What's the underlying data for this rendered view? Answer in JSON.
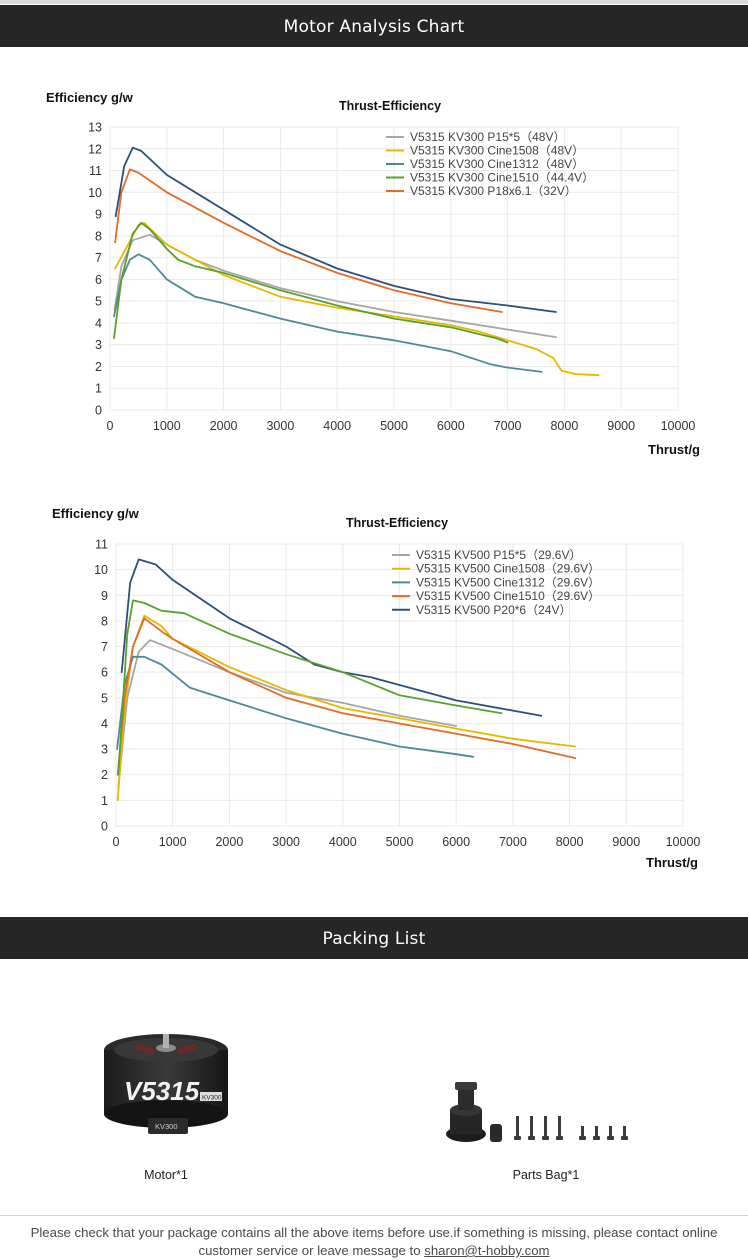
{
  "header": {
    "title": "Motor Analysis Chart"
  },
  "packing": {
    "title": "Packing List",
    "items": [
      {
        "label": "Motor*1",
        "motor_text": "V5315",
        "motor_badge": "KV300"
      },
      {
        "label": "Parts Bag*1"
      }
    ]
  },
  "footer": {
    "text_before": "Please check that your package contains all the above items before use.if something is missing, please contact online customer service or leave message to ",
    "email": "sharon@t-hobby.com"
  },
  "chart_data": [
    {
      "type": "line",
      "title": "Thrust-Efficiency",
      "ylabel": "Efficiency g/w",
      "xlabel": "Thrust/g",
      "xlim": [
        0,
        10000
      ],
      "ylim": [
        0,
        13
      ],
      "xticks": [
        0,
        1000,
        2000,
        3000,
        4000,
        5000,
        6000,
        7000,
        8000,
        9000,
        10000
      ],
      "yticks": [
        0,
        1,
        2,
        3,
        4,
        5,
        6,
        7,
        8,
        9,
        10,
        11,
        12,
        13
      ],
      "grid": true,
      "legend_position": "top-right",
      "series": [
        {
          "name": "V5315 KV300 P15*5（48V）",
          "color": "#a6a6a6",
          "points": [
            [
              80,
              4.6
            ],
            [
              200,
              6.6
            ],
            [
              400,
              7.8
            ],
            [
              700,
              8.05
            ],
            [
              1000,
              7.6
            ],
            [
              1500,
              6.9
            ],
            [
              2000,
              6.4
            ],
            [
              3000,
              5.6
            ],
            [
              4000,
              5.0
            ],
            [
              5000,
              4.5
            ],
            [
              6000,
              4.1
            ],
            [
              7000,
              3.7
            ],
            [
              7850,
              3.35
            ]
          ]
        },
        {
          "name": "V5315 KV300 Cine1508（48V）",
          "color": "#e6b800",
          "points": [
            [
              90,
              6.5
            ],
            [
              300,
              7.5
            ],
            [
              500,
              8.5
            ],
            [
              600,
              8.6
            ],
            [
              800,
              8.1
            ],
            [
              1000,
              7.6
            ],
            [
              1500,
              6.9
            ],
            [
              2000,
              6.2
            ],
            [
              3000,
              5.2
            ],
            [
              4000,
              4.7
            ],
            [
              5000,
              4.3
            ],
            [
              6000,
              3.9
            ],
            [
              6500,
              3.6
            ],
            [
              7000,
              3.2
            ],
            [
              7500,
              2.8
            ],
            [
              7800,
              2.4
            ],
            [
              7950,
              1.8
            ],
            [
              8200,
              1.65
            ],
            [
              8600,
              1.6
            ]
          ]
        },
        {
          "name": "V5315 KV300 Cine1312（48V）",
          "color": "#4d8a96",
          "points": [
            [
              70,
              4.3
            ],
            [
              200,
              6.0
            ],
            [
              350,
              6.9
            ],
            [
              500,
              7.15
            ],
            [
              700,
              6.9
            ],
            [
              1000,
              6.0
            ],
            [
              1500,
              5.2
            ],
            [
              2000,
              4.9
            ],
            [
              3000,
              4.2
            ],
            [
              4000,
              3.6
            ],
            [
              5000,
              3.2
            ],
            [
              6000,
              2.7
            ],
            [
              6700,
              2.1
            ],
            [
              7000,
              1.95
            ],
            [
              7600,
              1.75
            ]
          ]
        },
        {
          "name": "V5315 KV300 Cine1510（44.4V）",
          "color": "#5aa02c",
          "points": [
            [
              70,
              3.3
            ],
            [
              200,
              6.0
            ],
            [
              400,
              8.1
            ],
            [
              550,
              8.6
            ],
            [
              700,
              8.3
            ],
            [
              1000,
              7.4
            ],
            [
              1200,
              6.9
            ],
            [
              1500,
              6.6
            ],
            [
              2000,
              6.3
            ],
            [
              3000,
              5.5
            ],
            [
              4000,
              4.8
            ],
            [
              5000,
              4.2
            ],
            [
              6000,
              3.8
            ],
            [
              6800,
              3.3
            ],
            [
              7000,
              3.1
            ]
          ]
        },
        {
          "name": "V5315 KV300 P18x6.1（32V）",
          "color": "#e06c28",
          "points": [
            [
              90,
              7.7
            ],
            [
              200,
              10.0
            ],
            [
              350,
              11.05
            ],
            [
              500,
              10.9
            ],
            [
              1000,
              10.0
            ],
            [
              2000,
              8.6
            ],
            [
              3000,
              7.3
            ],
            [
              4000,
              6.3
            ],
            [
              5000,
              5.5
            ],
            [
              6000,
              4.9
            ],
            [
              6900,
              4.5
            ]
          ]
        },
        {
          "name": "",
          "color": "#2e4f7a",
          "points": [
            [
              100,
              8.9
            ],
            [
              250,
              11.2
            ],
            [
              400,
              12.05
            ],
            [
              550,
              11.9
            ],
            [
              1000,
              10.8
            ],
            [
              2000,
              9.2
            ],
            [
              3000,
              7.6
            ],
            [
              4000,
              6.5
            ],
            [
              5000,
              5.7
            ],
            [
              6000,
              5.1
            ],
            [
              7000,
              4.8
            ],
            [
              7850,
              4.5
            ]
          ]
        }
      ]
    },
    {
      "type": "line",
      "title": "Thrust-Efficiency",
      "ylabel": "Efficiency g/w",
      "xlabel": "Thrust/g",
      "xlim": [
        0,
        10000
      ],
      "ylim": [
        0,
        11
      ],
      "xticks": [
        0,
        1000,
        2000,
        3000,
        4000,
        5000,
        6000,
        7000,
        8000,
        9000,
        10000
      ],
      "yticks": [
        0,
        1,
        2,
        3,
        4,
        5,
        6,
        7,
        8,
        9,
        10,
        11
      ],
      "grid": true,
      "legend_position": "top-right",
      "series": [
        {
          "name": "V5315 KV500 P15*5（29.6V）",
          "color": "#a6a6a6",
          "points": [
            [
              40,
              1.5
            ],
            [
              200,
              5.0
            ],
            [
              400,
              6.8
            ],
            [
              600,
              7.25
            ],
            [
              1000,
              6.9
            ],
            [
              2000,
              6.0
            ],
            [
              3000,
              5.2
            ],
            [
              4000,
              4.8
            ],
            [
              5000,
              4.3
            ],
            [
              6000,
              3.9
            ]
          ]
        },
        {
          "name": "V5315 KV500 Cine1508（29.6V）",
          "color": "#e6b800",
          "points": [
            [
              30,
              1.0
            ],
            [
              150,
              4.5
            ],
            [
              300,
              7.0
            ],
            [
              500,
              8.2
            ],
            [
              800,
              7.8
            ],
            [
              1000,
              7.3
            ],
            [
              2000,
              6.2
            ],
            [
              3000,
              5.3
            ],
            [
              4000,
              4.6
            ],
            [
              5000,
              4.2
            ],
            [
              6000,
              3.8
            ],
            [
              7000,
              3.4
            ],
            [
              8100,
              3.1
            ]
          ]
        },
        {
          "name": "V5315 KV500 Cine1312（29.6V）",
          "color": "#4d8a96",
          "points": [
            [
              20,
              3.0
            ],
            [
              150,
              5.5
            ],
            [
              300,
              6.6
            ],
            [
              500,
              6.6
            ],
            [
              800,
              6.3
            ],
            [
              1300,
              5.4
            ],
            [
              2000,
              4.9
            ],
            [
              3000,
              4.2
            ],
            [
              4000,
              3.6
            ],
            [
              5000,
              3.1
            ],
            [
              6000,
              2.8
            ],
            [
              6300,
              2.7
            ]
          ]
        },
        {
          "name": "V5315 KV500 Cine1510（29.6V）",
          "color": "#e06c28",
          "points": [
            [
              30,
              2.0
            ],
            [
              150,
              5.0
            ],
            [
              300,
              7.0
            ],
            [
              500,
              8.1
            ],
            [
              800,
              7.6
            ],
            [
              1000,
              7.3
            ],
            [
              2000,
              6.0
            ],
            [
              3000,
              5.0
            ],
            [
              4000,
              4.4
            ],
            [
              5000,
              4.0
            ],
            [
              6000,
              3.6
            ],
            [
              7000,
              3.2
            ],
            [
              8100,
              2.65
            ]
          ]
        },
        {
          "name": "V5315 KV500 P20*6（24V）",
          "color": "#2e4f7a",
          "points": [
            [
              100,
              6.0
            ],
            [
              250,
              9.5
            ],
            [
              400,
              10.4
            ],
            [
              700,
              10.2
            ],
            [
              1000,
              9.6
            ],
            [
              2000,
              8.1
            ],
            [
              3000,
              7.0
            ],
            [
              3500,
              6.3
            ],
            [
              4000,
              6.0
            ],
            [
              4500,
              5.8
            ],
            [
              5000,
              5.5
            ],
            [
              6000,
              4.9
            ],
            [
              7000,
              4.5
            ],
            [
              7500,
              4.3
            ]
          ]
        },
        {
          "name": "",
          "color": "#5aa02c",
          "points": [
            [
              40,
              2.0
            ],
            [
              200,
              7.5
            ],
            [
              300,
              8.8
            ],
            [
              500,
              8.7
            ],
            [
              800,
              8.4
            ],
            [
              1200,
              8.3
            ],
            [
              2000,
              7.5
            ],
            [
              3000,
              6.7
            ],
            [
              4000,
              6.0
            ],
            [
              5000,
              5.1
            ],
            [
              6000,
              4.7
            ],
            [
              6800,
              4.4
            ]
          ]
        }
      ]
    }
  ]
}
